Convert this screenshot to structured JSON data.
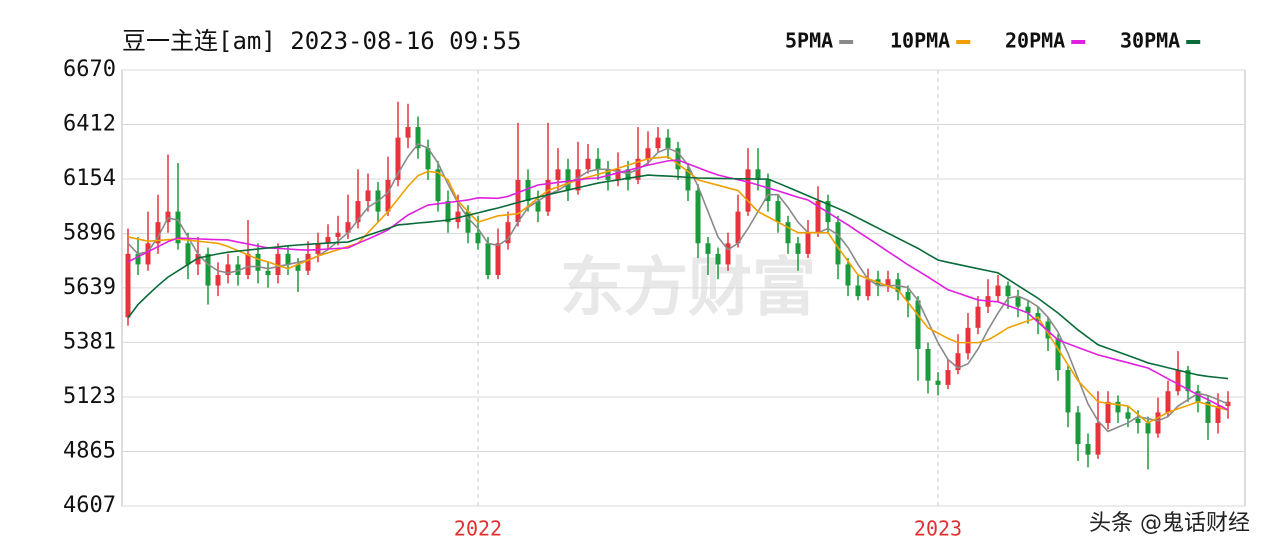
{
  "chart_data": {
    "type": "candlestick",
    "title": "豆一主连[am] 2023-08-16 09:55",
    "watermark": "东方财富",
    "credit": "头条 @鬼话财经",
    "ylim": [
      4607,
      6670
    ],
    "yticks": [
      6670,
      6412,
      6154,
      5896,
      5639,
      5381,
      5123,
      4865,
      4607
    ],
    "grid": true,
    "up_color": "#e8323c",
    "down_color": "#1a9a3a",
    "categories": [
      null,
      null,
      null,
      null,
      null,
      null,
      null,
      null,
      null,
      null,
      null,
      null,
      null,
      null,
      null,
      null,
      null,
      null,
      null,
      null,
      null,
      null,
      null,
      null,
      null,
      null,
      null,
      null,
      null,
      null,
      null,
      null,
      null,
      null,
      null,
      "2022",
      null,
      null,
      null,
      null,
      null,
      null,
      null,
      null,
      null,
      null,
      null,
      null,
      null,
      null,
      null,
      null,
      null,
      null,
      null,
      null,
      null,
      null,
      null,
      null,
      null,
      null,
      null,
      null,
      null,
      null,
      null,
      null,
      null,
      null,
      null,
      null,
      null,
      null,
      null,
      null,
      null,
      null,
      null,
      null,
      null,
      "2023",
      null,
      null,
      null,
      null,
      null,
      null,
      null,
      null,
      null,
      null,
      null,
      null,
      null,
      null,
      null,
      null,
      null,
      null,
      null,
      null,
      null,
      null,
      null,
      null,
      null,
      null,
      null,
      null,
      null
    ],
    "candles": [
      [
        5500,
        5920,
        5460,
        5800
      ],
      [
        5800,
        5880,
        5700,
        5750
      ],
      [
        5750,
        6000,
        5720,
        5850
      ],
      [
        5850,
        6080,
        5800,
        5950
      ],
      [
        5950,
        6270,
        5900,
        6000
      ],
      [
        6000,
        6230,
        5820,
        5850
      ],
      [
        5850,
        5900,
        5680,
        5750
      ],
      [
        5750,
        5880,
        5700,
        5800
      ],
      [
        5800,
        5830,
        5560,
        5650
      ],
      [
        5650,
        5760,
        5600,
        5700
      ],
      [
        5700,
        5800,
        5660,
        5750
      ],
      [
        5750,
        5790,
        5650,
        5700
      ],
      [
        5700,
        5960,
        5680,
        5800
      ],
      [
        5800,
        5850,
        5660,
        5720
      ],
      [
        5720,
        5760,
        5640,
        5700
      ],
      [
        5700,
        5850,
        5660,
        5800
      ],
      [
        5800,
        5840,
        5700,
        5750
      ],
      [
        5750,
        5780,
        5620,
        5720
      ],
      [
        5720,
        5860,
        5700,
        5800
      ],
      [
        5800,
        5900,
        5760,
        5850
      ],
      [
        5850,
        5940,
        5820,
        5880
      ],
      [
        5880,
        5980,
        5840,
        5900
      ],
      [
        5900,
        6080,
        5870,
        5950
      ],
      [
        5950,
        6200,
        5920,
        6050
      ],
      [
        6050,
        6180,
        6000,
        6100
      ],
      [
        6100,
        6140,
        5950,
        6000
      ],
      [
        6000,
        6260,
        5980,
        6150
      ],
      [
        6150,
        6520,
        6120,
        6350
      ],
      [
        6350,
        6510,
        6300,
        6400
      ],
      [
        6400,
        6450,
        6250,
        6300
      ],
      [
        6300,
        6340,
        6150,
        6200
      ],
      [
        6200,
        6240,
        6000,
        6050
      ],
      [
        6050,
        6100,
        5900,
        5950
      ],
      [
        5950,
        6080,
        5920,
        6000
      ],
      [
        6000,
        6030,
        5850,
        5900
      ],
      [
        5900,
        5980,
        5820,
        5850
      ],
      [
        5850,
        5880,
        5680,
        5700
      ],
      [
        5700,
        5920,
        5680,
        5850
      ],
      [
        5850,
        6000,
        5820,
        5950
      ],
      [
        5950,
        6420,
        5930,
        6150
      ],
      [
        6150,
        6200,
        6000,
        6050
      ],
      [
        6050,
        6100,
        5950,
        6000
      ],
      [
        6000,
        6420,
        5980,
        6150
      ],
      [
        6150,
        6300,
        6100,
        6200
      ],
      [
        6200,
        6250,
        6050,
        6100
      ],
      [
        6100,
        6330,
        6080,
        6200
      ],
      [
        6200,
        6320,
        6180,
        6250
      ],
      [
        6250,
        6300,
        6150,
        6200
      ],
      [
        6200,
        6240,
        6100,
        6150
      ],
      [
        6150,
        6280,
        6120,
        6200
      ],
      [
        6200,
        6240,
        6100,
        6150
      ],
      [
        6150,
        6400,
        6130,
        6250
      ],
      [
        6250,
        6380,
        6220,
        6300
      ],
      [
        6300,
        6400,
        6280,
        6350
      ],
      [
        6350,
        6390,
        6250,
        6300
      ],
      [
        6300,
        6330,
        6150,
        6200
      ],
      [
        6200,
        6230,
        6050,
        6100
      ],
      [
        6100,
        6130,
        5780,
        5850
      ],
      [
        5850,
        5880,
        5700,
        5800
      ],
      [
        5800,
        5830,
        5680,
        5750
      ],
      [
        5750,
        5900,
        5720,
        5850
      ],
      [
        5850,
        6080,
        5830,
        6000
      ],
      [
        6000,
        6300,
        5980,
        6200
      ],
      [
        6200,
        6300,
        6100,
        6150
      ],
      [
        6150,
        6180,
        6000,
        6050
      ],
      [
        6050,
        6080,
        5900,
        5950
      ],
      [
        5950,
        5980,
        5800,
        5850
      ],
      [
        5850,
        5880,
        5720,
        5800
      ],
      [
        5800,
        5960,
        5780,
        5900
      ],
      [
        5900,
        6120,
        5880,
        6050
      ],
      [
        6050,
        6080,
        5900,
        5950
      ],
      [
        5950,
        5980,
        5680,
        5750
      ],
      [
        5750,
        5780,
        5600,
        5650
      ],
      [
        5650,
        5700,
        5580,
        5600
      ],
      [
        5600,
        5730,
        5580,
        5680
      ],
      [
        5680,
        5720,
        5600,
        5650
      ],
      [
        5650,
        5720,
        5620,
        5680
      ],
      [
        5680,
        5710,
        5580,
        5620
      ],
      [
        5620,
        5650,
        5500,
        5580
      ],
      [
        5580,
        5600,
        5200,
        5350
      ],
      [
        5350,
        5380,
        5140,
        5200
      ],
      [
        5200,
        5240,
        5130,
        5180
      ],
      [
        5180,
        5300,
        5160,
        5250
      ],
      [
        5250,
        5420,
        5230,
        5330
      ],
      [
        5330,
        5520,
        5300,
        5450
      ],
      [
        5450,
        5600,
        5420,
        5550
      ],
      [
        5550,
        5680,
        5520,
        5600
      ],
      [
        5600,
        5700,
        5570,
        5650
      ],
      [
        5650,
        5670,
        5540,
        5600
      ],
      [
        5600,
        5630,
        5500,
        5550
      ],
      [
        5550,
        5580,
        5470,
        5520
      ],
      [
        5520,
        5550,
        5420,
        5480
      ],
      [
        5480,
        5500,
        5340,
        5400
      ],
      [
        5400,
        5420,
        5200,
        5250
      ],
      [
        5250,
        5270,
        4980,
        5050
      ],
      [
        5050,
        5080,
        4820,
        4900
      ],
      [
        4900,
        4950,
        4790,
        4850
      ],
      [
        4850,
        5150,
        4830,
        5000
      ],
      [
        5000,
        5150,
        4970,
        5100
      ],
      [
        5100,
        5130,
        5000,
        5050
      ],
      [
        5050,
        5080,
        4980,
        5020
      ],
      [
        5020,
        5060,
        4950,
        5000
      ],
      [
        5000,
        5030,
        4780,
        4950
      ],
      [
        4950,
        5120,
        4930,
        5050
      ],
      [
        5050,
        5200,
        5030,
        5150
      ],
      [
        5150,
        5340,
        5130,
        5250
      ],
      [
        5250,
        5270,
        5100,
        5150
      ],
      [
        5150,
        5180,
        5050,
        5100
      ],
      [
        5100,
        5130,
        4920,
        5000
      ],
      [
        5000,
        5140,
        4950,
        5080
      ],
      [
        5080,
        5150,
        5020,
        5100
      ]
    ],
    "series": [
      {
        "name": "5PMA",
        "color": "#8a8a8a",
        "values": [
          5850,
          5800,
          5810,
          5880,
          5970,
          5960,
          5880,
          5800,
          5750,
          5720,
          5710,
          5720,
          5740,
          5740,
          5730,
          5740,
          5750,
          5760,
          5770,
          5790,
          5820,
          5860,
          5900,
          5960,
          6020,
          6050,
          6090,
          6180,
          6260,
          6320,
          6300,
          6230,
          6130,
          6040,
          5970,
          5920,
          5850,
          5840,
          5870,
          5950,
          6020,
          6050,
          6080,
          6100,
          6130,
          6160,
          6190,
          6200,
          6200,
          6190,
          6180,
          6200,
          6230,
          6280,
          6300,
          6280,
          6220,
          6120,
          6000,
          5880,
          5820,
          5850,
          5920,
          6000,
          6080,
          6080,
          6020,
          5950,
          5900,
          5900,
          5920,
          5890,
          5830,
          5750,
          5680,
          5650,
          5650,
          5650,
          5640,
          5580,
          5480,
          5380,
          5300,
          5260,
          5280,
          5350,
          5440,
          5520,
          5590,
          5600,
          5580,
          5550,
          5500,
          5430,
          5330,
          5210,
          5090,
          5010,
          4960,
          4980,
          5000,
          5030,
          5020,
          5010,
          5030,
          5080,
          5110,
          5140,
          5130,
          5110,
          5090
        ]
      },
      {
        "name": "10PMA",
        "color": "#f0a000",
        "values": [
          5880,
          5870,
          5860,
          5863,
          5867,
          5870,
          5865,
          5860,
          5855,
          5850,
          5835,
          5815,
          5795,
          5775,
          5762,
          5745,
          5730,
          5750,
          5770,
          5790,
          5805,
          5820,
          5835,
          5850,
          5900,
          5950,
          6000,
          6060,
          6120,
          6170,
          6190,
          6185,
          6150,
          6050,
          6000,
          5950,
          5965,
          5980,
          5985,
          5990,
          6025,
          6065,
          6100,
          6117,
          6134,
          6150,
          6163,
          6176,
          6190,
          6205,
          6220,
          6235,
          6250,
          6255,
          6260,
          6225,
          6190,
          6150,
          6137,
          6125,
          6112,
          6100,
          6050,
          6000,
          5975,
          5950,
          5925,
          5900,
          5900,
          5900,
          5900,
          5830,
          5765,
          5700,
          5683,
          5665,
          5648,
          5630,
          5570,
          5510,
          5450,
          5425,
          5400,
          5380,
          5380,
          5380,
          5393,
          5420,
          5450,
          5467,
          5483,
          5500,
          5425,
          5350,
          5275,
          5200,
          5150,
          5100,
          5093,
          5087,
          5080,
          5040,
          5000,
          5025,
          5050,
          5067,
          5083,
          5100,
          5087,
          5073,
          5060
        ]
      },
      {
        "name": "20PMA",
        "color": "#e020e0",
        "values": [
          5762,
          5786,
          5810,
          5834,
          5858,
          5875,
          5873,
          5871,
          5869,
          5867,
          5866,
          5856,
          5847,
          5837,
          5828,
          5826,
          5823,
          5820,
          5818,
          5820,
          5823,
          5826,
          5828,
          5850,
          5870,
          5891,
          5913,
          5949,
          5984,
          6008,
          6031,
          6037,
          6043,
          6049,
          6055,
          6065,
          6064,
          6063,
          6072,
          6090,
          6108,
          6126,
          6132,
          6138,
          6144,
          6150,
          6156,
          6159,
          6171,
          6183,
          6195,
          6207,
          6220,
          6230,
          6240,
          6244,
          6226,
          6208,
          6190,
          6173,
          6162,
          6151,
          6140,
          6126,
          6112,
          6098,
          6083,
          6068,
          6055,
          6025,
          5996,
          5966,
          5937,
          5905,
          5874,
          5843,
          5811,
          5780,
          5748,
          5720,
          5691,
          5660,
          5630,
          5614,
          5598,
          5582,
          5577,
          5573,
          5555,
          5538,
          5520,
          5477,
          5435,
          5393,
          5375,
          5357,
          5340,
          5322,
          5310,
          5297,
          5285,
          5272,
          5260,
          5235,
          5209,
          5184,
          5158,
          5133,
          5110,
          5086,
          5062
        ]
      },
      {
        "name": "30PMA",
        "color": "#0a6b3a",
        "values": [
          5497,
          5560,
          5606,
          5650,
          5690,
          5720,
          5750,
          5780,
          5790,
          5800,
          5808,
          5813,
          5818,
          5823,
          5828,
          5833,
          5838,
          5842,
          5845,
          5848,
          5851,
          5854,
          5856,
          5872,
          5888,
          5904,
          5920,
          5937,
          5941,
          5946,
          5950,
          5955,
          5960,
          5971,
          5983,
          5994,
          6006,
          6017,
          6030,
          6043,
          6056,
          6068,
          6080,
          6091,
          6102,
          6113,
          6124,
          6135,
          6143,
          6150,
          6158,
          6165,
          6173,
          6170,
          6168,
          6165,
          6162,
          6159,
          6158,
          6157,
          6156,
          6155,
          6155,
          6154,
          6154,
          6135,
          6115,
          6095,
          6075,
          6055,
          6035,
          6015,
          5994,
          5970,
          5946,
          5922,
          5898,
          5874,
          5850,
          5826,
          5798,
          5771,
          5760,
          5750,
          5740,
          5730,
          5720,
          5710,
          5680,
          5650,
          5620,
          5590,
          5555,
          5520,
          5480,
          5440,
          5405,
          5370,
          5353,
          5336,
          5319,
          5302,
          5284,
          5273,
          5261,
          5250,
          5238,
          5227,
          5220,
          5215,
          5210
        ]
      }
    ]
  }
}
